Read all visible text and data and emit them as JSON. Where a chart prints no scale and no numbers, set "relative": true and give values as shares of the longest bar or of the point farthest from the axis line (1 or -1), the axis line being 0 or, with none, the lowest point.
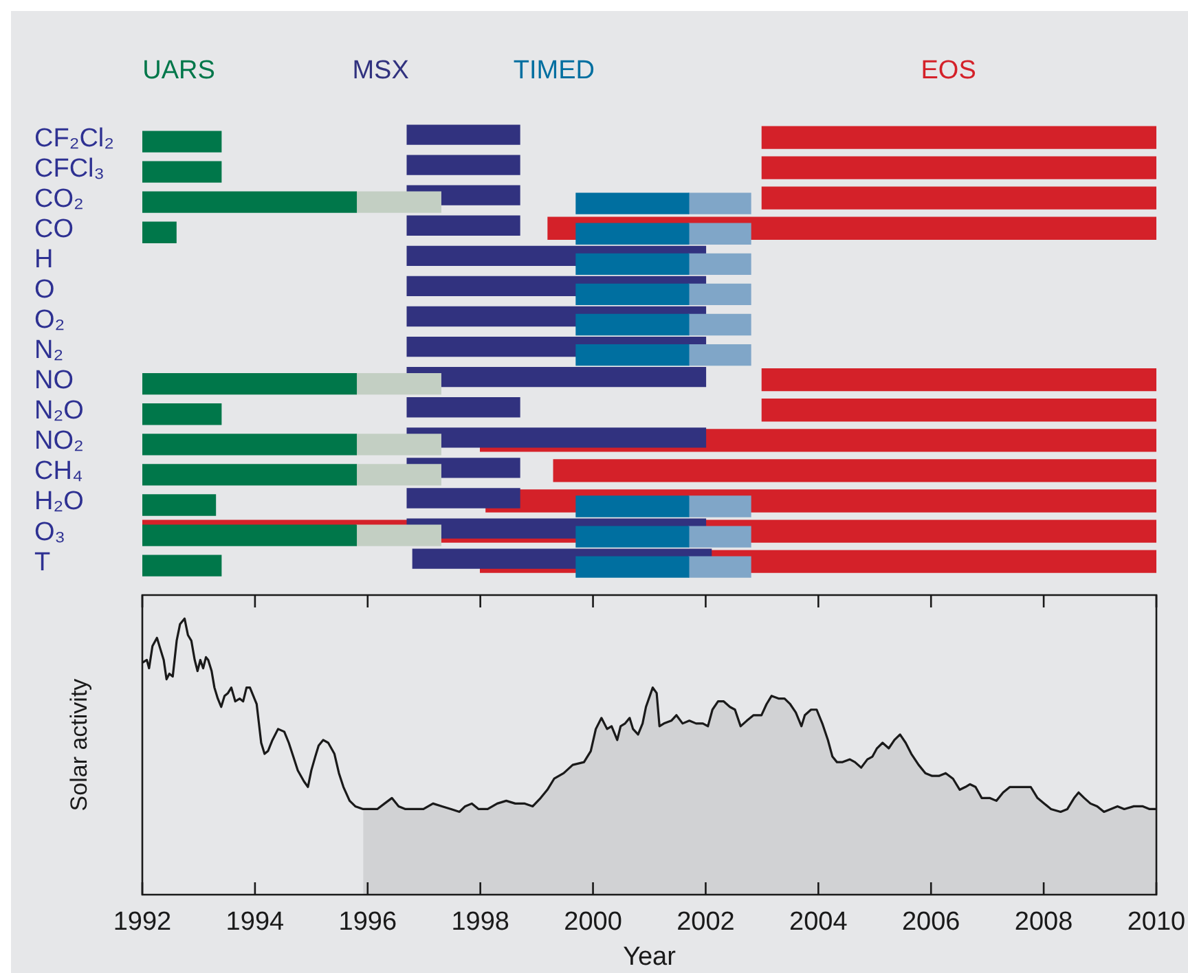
{
  "chart_data": [
    {
      "type": "bar",
      "orientation": "horizontal",
      "legend": "top",
      "tick_labels": "y",
      "xlim": [
        1992,
        2010
      ],
      "categories": [
        "CF₂Cl₂",
        "CFCl₃",
        "CO₂",
        "CO",
        "H",
        "O",
        "O₂",
        "N₂",
        "NO",
        "N₂O",
        "NO₂",
        "CH₄",
        "H₂O",
        "O₃",
        "T"
      ],
      "series": [
        {
          "name": "UARS",
          "color": "#00774a",
          "base": [
            1992,
            1992,
            1992,
            1992,
            null,
            null,
            null,
            null,
            1992,
            1992,
            1992,
            1992,
            1992,
            1992,
            1992
          ],
          "values": [
            1.4,
            1.4,
            3.8,
            0.6,
            null,
            null,
            null,
            null,
            3.8,
            1.4,
            3.8,
            3.8,
            1.3,
            3.8,
            1.4
          ]
        },
        {
          "color": "#c3cfc3",
          "base": [
            null,
            null,
            1995.8,
            null,
            null,
            null,
            null,
            null,
            1995.8,
            null,
            1995.8,
            1995.8,
            null,
            1995.8,
            null
          ],
          "values": [
            null,
            null,
            1.5,
            null,
            null,
            null,
            null,
            null,
            1.5,
            null,
            1.5,
            1.5,
            null,
            1.5,
            null
          ]
        },
        {
          "name": "TIMED",
          "color": "#006fa0",
          "base": [
            null,
            null,
            1999.7,
            1999.7,
            1999.7,
            1999.7,
            1999.7,
            1999.7,
            null,
            null,
            null,
            null,
            1999.7,
            1999.7,
            1999.7
          ],
          "values": [
            null,
            null,
            2,
            2,
            2,
            2,
            2,
            2,
            null,
            null,
            null,
            null,
            2,
            2,
            2
          ]
        },
        {
          "color": "#80a6c8",
          "base": [
            null,
            null,
            2001.7,
            2001.7,
            2001.7,
            2001.7,
            2001.7,
            2001.7,
            null,
            null,
            null,
            null,
            2001.7,
            2001.7,
            2001.7
          ],
          "values": [
            null,
            null,
            1.1,
            1.1,
            1.1,
            1.1,
            1.1,
            1.1,
            null,
            null,
            null,
            null,
            1.1,
            1.1,
            1.1
          ]
        },
        {
          "name": "MSX",
          "color": "#31327f",
          "base": [
            1996.7,
            1996.7,
            1996.7,
            1996.7,
            1996.7,
            1996.7,
            1996.7,
            1996.7,
            1996.7,
            1996.7,
            1996.7,
            1996.7,
            1996.7,
            1996.7,
            1996.8
          ],
          "values": [
            2,
            2,
            2,
            2,
            5.3,
            5.3,
            5.3,
            5.3,
            5.3,
            2,
            5.3,
            2,
            2,
            5.3,
            5.3
          ]
        },
        {
          "name": "EOS",
          "color": "#d42129",
          "base": [
            2003,
            2003,
            2003,
            1999.2,
            null,
            null,
            null,
            null,
            2003,
            2003,
            1998,
            1999.3,
            1998.1,
            1992,
            1998
          ],
          "values": [
            7,
            7,
            7,
            10.8,
            null,
            null,
            null,
            null,
            7,
            7,
            12,
            10.7,
            11.9,
            18,
            12
          ]
        }
      ]
    },
    {
      "type": "line",
      "xlabel": "Year",
      "ylabel": "Solar activity",
      "relative": true,
      "xlim": [
        1992,
        2010
      ],
      "xticks": [
        1992,
        1994,
        1996,
        1998,
        2000,
        2002,
        2004,
        2006,
        2008,
        2010
      ],
      "series": [
        {
          "color": "#1a1a1a",
          "x": [
            1992,
            1992.08,
            1992.12,
            1992.18,
            1992.26,
            1992.32,
            1992.38,
            1992.43,
            1992.48,
            1992.54,
            1992.61,
            1992.67,
            1992.75,
            1992.81,
            1992.87,
            1992.93,
            1992.98,
            1993.03,
            1993.08,
            1993.13,
            1993.17,
            1993.23,
            1993.28,
            1993.34,
            1993.4,
            1993.46,
            1993.52,
            1993.58,
            1993.65,
            1993.73,
            1993.79,
            1993.85,
            1993.91,
            1993.97,
            1994.03,
            1994.07,
            1994.11,
            1994.17,
            1994.23,
            1994.31,
            1994.41,
            1994.52,
            1994.6,
            1994.68,
            1994.76,
            1994.87,
            1994.94,
            1995,
            1995.07,
            1995.13,
            1995.21,
            1995.3,
            1995.41,
            1995.49,
            1995.57,
            1995.68,
            1995.78,
            1995.92,
            1996.02,
            1996.17,
            1996.3,
            1996.43,
            1996.55,
            1996.67,
            1996.83,
            1996.99,
            1997.16,
            1997.32,
            1997.48,
            1997.63,
            1997.73,
            1997.85,
            1997.97,
            1998.13,
            1998.3,
            1998.46,
            1998.62,
            1998.79,
            1998.93,
            1999.07,
            1999.19,
            1999.31,
            1999.48,
            1999.64,
            1999.84,
            1999.96,
            2000.05,
            2000.15,
            2000.25,
            2000.33,
            2000.43,
            2000.49,
            2000.57,
            2000.65,
            2000.71,
            2000.8,
            2000.88,
            2000.94,
            2001.06,
            2001.13,
            2001.18,
            2001.26,
            2001.39,
            2001.48,
            2001.59,
            2001.71,
            2001.83,
            2001.95,
            2002.04,
            2002.12,
            2002.22,
            2002.32,
            2002.43,
            2002.52,
            2002.62,
            2002.73,
            2002.85,
            2002.99,
            2003.08,
            2003.17,
            2003.3,
            2003.4,
            2003.5,
            2003.6,
            2003.7,
            2003.76,
            2003.87,
            2003.97,
            2004.07,
            2004.17,
            2004.25,
            2004.33,
            2004.43,
            2004.56,
            2004.65,
            2004.76,
            2004.87,
            2004.96,
            2005.04,
            2005.14,
            2005.25,
            2005.35,
            2005.45,
            2005.55,
            2005.65,
            2005.78,
            2005.9,
            2006.02,
            2006.14,
            2006.26,
            2006.39,
            2006.51,
            2006.61,
            2006.69,
            2006.79,
            2006.9,
            2007.04,
            2007.16,
            2007.28,
            2007.4,
            2007.52,
            2007.65,
            2007.77,
            2007.89,
            2008.01,
            2008.13,
            2008.3,
            2008.42,
            2008.54,
            2008.62,
            2008.72,
            2008.83,
            2008.95,
            2009.07,
            2009.19,
            2009.31,
            2009.43,
            2009.6,
            2009.76,
            2009.88,
            2010
          ],
          "values": [
            0.84,
            0.85,
            0.82,
            0.9,
            0.93,
            0.89,
            0.85,
            0.78,
            0.8,
            0.79,
            0.92,
            0.98,
            1,
            0.94,
            0.92,
            0.85,
            0.81,
            0.85,
            0.82,
            0.86,
            0.85,
            0.81,
            0.75,
            0.71,
            0.68,
            0.72,
            0.73,
            0.75,
            0.7,
            0.71,
            0.7,
            0.75,
            0.75,
            0.72,
            0.69,
            0.62,
            0.55,
            0.51,
            0.52,
            0.56,
            0.6,
            0.59,
            0.55,
            0.5,
            0.45,
            0.41,
            0.39,
            0.45,
            0.5,
            0.54,
            0.56,
            0.55,
            0.51,
            0.44,
            0.39,
            0.34,
            0.32,
            0.31,
            0.31,
            0.31,
            0.33,
            0.35,
            0.32,
            0.31,
            0.31,
            0.31,
            0.33,
            0.32,
            0.31,
            0.3,
            0.32,
            0.33,
            0.31,
            0.31,
            0.33,
            0.34,
            0.33,
            0.33,
            0.32,
            0.35,
            0.38,
            0.42,
            0.44,
            0.47,
            0.48,
            0.52,
            0.6,
            0.64,
            0.6,
            0.61,
            0.56,
            0.61,
            0.62,
            0.64,
            0.6,
            0.58,
            0.62,
            0.68,
            0.75,
            0.73,
            0.61,
            0.62,
            0.63,
            0.65,
            0.62,
            0.63,
            0.62,
            0.62,
            0.61,
            0.67,
            0.7,
            0.7,
            0.68,
            0.67,
            0.61,
            0.63,
            0.65,
            0.65,
            0.69,
            0.72,
            0.71,
            0.71,
            0.69,
            0.66,
            0.61,
            0.65,
            0.67,
            0.67,
            0.62,
            0.56,
            0.5,
            0.48,
            0.48,
            0.49,
            0.48,
            0.46,
            0.49,
            0.5,
            0.53,
            0.55,
            0.53,
            0.56,
            0.58,
            0.55,
            0.51,
            0.47,
            0.44,
            0.43,
            0.43,
            0.44,
            0.42,
            0.38,
            0.39,
            0.4,
            0.39,
            0.35,
            0.35,
            0.34,
            0.37,
            0.39,
            0.39,
            0.39,
            0.39,
            0.35,
            0.33,
            0.31,
            0.3,
            0.31,
            0.35,
            0.37,
            0.35,
            0.33,
            0.32,
            0.3,
            0.31,
            0.32,
            0.31,
            0.32,
            0.32,
            0.31,
            0.31
          ]
        },
        {
          "type": "area",
          "color": "#d1d2d4",
          "x": [
            1995.92,
            1996.02,
            1996.17,
            1996.3,
            1996.43,
            1996.55,
            1996.67,
            1996.83,
            1996.99,
            1997.16,
            1997.32,
            1997.48,
            1997.63,
            1997.73,
            1997.85,
            1997.97,
            1998.13,
            1998.3,
            1998.46,
            1998.62,
            1998.79,
            1998.93,
            1999.07,
            1999.19,
            1999.31,
            1999.48,
            1999.64,
            1999.84,
            1999.96,
            2000.05,
            2000.15,
            2000.25,
            2000.33,
            2000.43,
            2000.49,
            2000.57,
            2000.65,
            2000.71,
            2000.8,
            2000.88,
            2000.94,
            2001.06,
            2001.13,
            2001.18,
            2001.26,
            2001.39,
            2001.48,
            2001.59,
            2001.71,
            2001.83,
            2001.95,
            2002.04,
            2002.12,
            2002.22,
            2002.32,
            2002.43,
            2002.52,
            2002.62,
            2002.73,
            2002.85,
            2002.99,
            2003.08,
            2003.17,
            2003.3,
            2003.4,
            2003.5,
            2003.6,
            2003.7,
            2003.76,
            2003.87,
            2003.97,
            2004.07,
            2004.17,
            2004.25,
            2004.33,
            2004.43,
            2004.56,
            2004.65,
            2004.76,
            2004.87,
            2004.96,
            2005.04,
            2005.14,
            2005.25,
            2005.35,
            2005.45,
            2005.55,
            2005.65,
            2005.78,
            2005.9,
            2006.02,
            2006.14,
            2006.26,
            2006.39,
            2006.51,
            2006.61,
            2006.69,
            2006.79,
            2006.9,
            2007.04,
            2007.16,
            2007.28,
            2007.4,
            2007.52,
            2007.65,
            2007.77,
            2007.89,
            2008.01,
            2008.13,
            2008.3,
            2008.42,
            2008.54,
            2008.62,
            2008.72,
            2008.83,
            2008.95,
            2009.07,
            2009.19,
            2009.31,
            2009.43,
            2009.6,
            2009.76,
            2009.88,
            2010
          ],
          "values": [
            0.31,
            0.31,
            0.31,
            0.33,
            0.35,
            0.32,
            0.31,
            0.31,
            0.31,
            0.33,
            0.32,
            0.31,
            0.3,
            0.32,
            0.33,
            0.31,
            0.31,
            0.33,
            0.34,
            0.33,
            0.33,
            0.32,
            0.35,
            0.38,
            0.42,
            0.44,
            0.47,
            0.48,
            0.52,
            0.6,
            0.64,
            0.6,
            0.61,
            0.56,
            0.61,
            0.62,
            0.64,
            0.6,
            0.58,
            0.62,
            0.68,
            0.75,
            0.73,
            0.61,
            0.62,
            0.63,
            0.65,
            0.62,
            0.63,
            0.62,
            0.62,
            0.61,
            0.67,
            0.7,
            0.7,
            0.68,
            0.67,
            0.61,
            0.63,
            0.65,
            0.65,
            0.69,
            0.72,
            0.71,
            0.71,
            0.69,
            0.66,
            0.61,
            0.65,
            0.67,
            0.67,
            0.62,
            0.56,
            0.5,
            0.48,
            0.48,
            0.49,
            0.48,
            0.46,
            0.49,
            0.5,
            0.53,
            0.55,
            0.53,
            0.56,
            0.58,
            0.55,
            0.51,
            0.47,
            0.44,
            0.43,
            0.43,
            0.44,
            0.42,
            0.38,
            0.39,
            0.4,
            0.39,
            0.35,
            0.35,
            0.34,
            0.37,
            0.39,
            0.39,
            0.39,
            0.39,
            0.35,
            0.33,
            0.31,
            0.3,
            0.31,
            0.35,
            0.37,
            0.35,
            0.33,
            0.32,
            0.3,
            0.31,
            0.32,
            0.31,
            0.32,
            0.32,
            0.31,
            0.31
          ]
        }
      ]
    }
  ]
}
